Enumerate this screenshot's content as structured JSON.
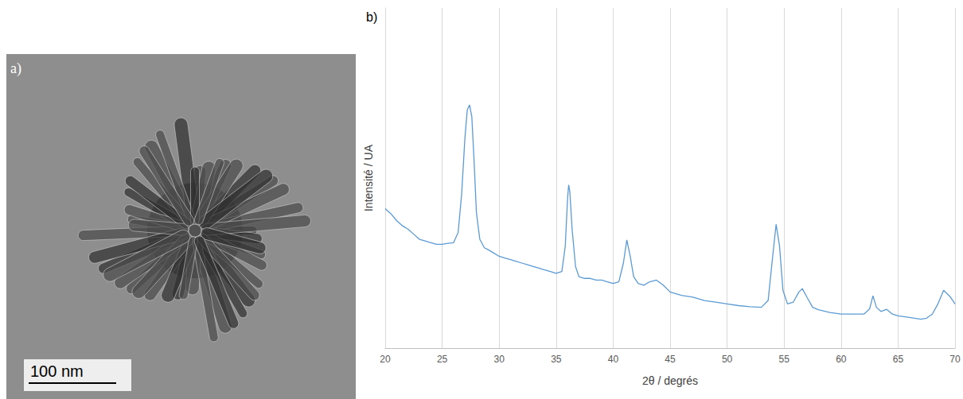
{
  "image_panel": {
    "label": "a)",
    "scale_bar": "100 nm"
  },
  "chart_data": {
    "type": "line",
    "title": "b)",
    "xlabel": "2θ / degrés",
    "ylabel": "Intensité / UA",
    "x": [
      20,
      20.5,
      21,
      21.5,
      22,
      22.5,
      23,
      23.5,
      24,
      24.5,
      25,
      25.5,
      26,
      26.4,
      26.7,
      27.0,
      27.2,
      27.4,
      27.6,
      27.8,
      28.0,
      28.3,
      28.7,
      29,
      29.5,
      30,
      30.5,
      31,
      31.5,
      32,
      32.5,
      33,
      33.5,
      34,
      34.5,
      35,
      35.5,
      35.8,
      36.0,
      36.1,
      36.2,
      36.4,
      36.7,
      37,
      37.5,
      38,
      38.5,
      39,
      39.5,
      40,
      40.5,
      40.9,
      41.2,
      41.5,
      41.8,
      42.2,
      42.7,
      43.2,
      43.8,
      44.4,
      45,
      46,
      47,
      48,
      49,
      50,
      51,
      52,
      53,
      53.6,
      54.0,
      54.3,
      54.6,
      54.9,
      55.3,
      55.8,
      56.3,
      56.6,
      57,
      57.5,
      58,
      59,
      60,
      61,
      62,
      62.5,
      62.8,
      63.1,
      63.5,
      64,
      64.5,
      65,
      66,
      67,
      67.5,
      68,
      68.5,
      69,
      69.3,
      69.6,
      70
    ],
    "values": [
      41,
      39.5,
      37.5,
      36,
      35,
      33.5,
      32,
      31.5,
      31,
      30.5,
      30.5,
      30.8,
      31,
      34,
      45,
      62,
      70,
      71.5,
      68,
      55,
      40,
      32,
      29.5,
      29,
      28,
      27,
      26.5,
      26,
      25.5,
      25,
      24.5,
      24,
      23.5,
      23,
      22.5,
      22,
      22.5,
      30,
      44,
      48,
      46,
      35,
      24,
      21,
      20.5,
      20.5,
      20,
      20,
      19.5,
      19,
      19.5,
      25,
      31.8,
      27,
      21,
      19,
      18.5,
      19.5,
      20,
      18.5,
      16.5,
      15.5,
      15,
      14,
      13.5,
      13,
      12.5,
      12.2,
      12,
      14,
      27,
      36.4,
      30,
      17,
      13,
      13.5,
      16.5,
      17.5,
      15,
      12,
      11.3,
      10.5,
      10,
      10,
      10,
      11.5,
      15.4,
      12,
      10.8,
      11.4,
      10,
      9.5,
      9,
      8.5,
      8.8,
      10,
      13,
      17,
      16,
      15,
      13
    ],
    "color": "#5b9bd5",
    "xlim": [
      20,
      70
    ],
    "xticks": [
      20,
      25,
      30,
      35,
      40,
      45,
      50,
      55,
      60,
      65,
      70
    ],
    "ylim": [
      0,
      100
    ],
    "yticks": [],
    "grid": true,
    "tick_labels": "x"
  }
}
